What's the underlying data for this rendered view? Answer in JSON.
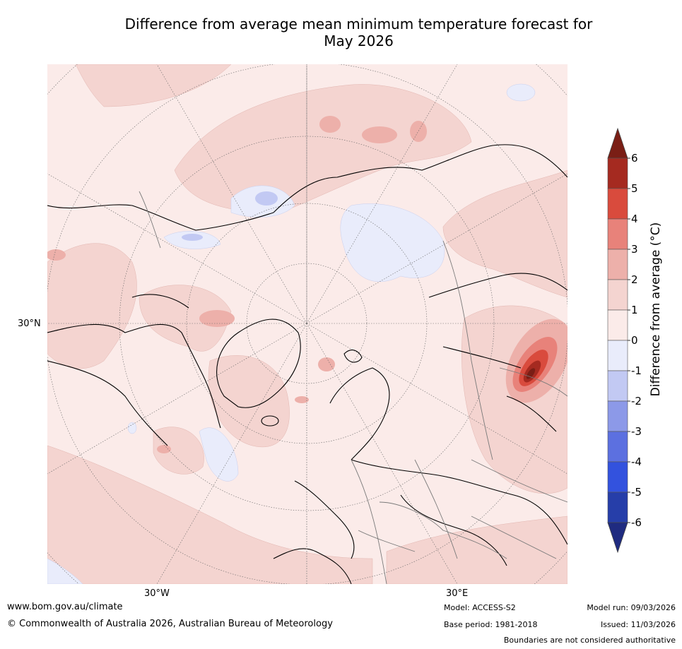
{
  "title_line1": "Difference from average mean minimum temperature forecast for",
  "title_line2": "May 2026",
  "map": {
    "lat_label": "30°N",
    "lon_labels": [
      "30°W",
      "30°E"
    ]
  },
  "colorbar": {
    "label": "Difference from average (°C)",
    "ticks": [
      "6",
      "5",
      "4",
      "3",
      "2",
      "1",
      "0",
      "-1",
      "-2",
      "-3",
      "-4",
      "-5",
      "-6"
    ],
    "colors": [
      "#a52a20",
      "#d94b3d",
      "#e8827a",
      "#edb0aa",
      "#f4d4d0",
      "#fbebe9",
      "#e9ecfb",
      "#c2c9f3",
      "#8c99e8",
      "#5c70e0",
      "#3352de",
      "#263ea9"
    ],
    "extend_top_color": "#7a1e15",
    "extend_bottom_color": "#1f2b80"
  },
  "footer": {
    "website": "www.bom.gov.au/climate",
    "copyright": "© Commonwealth of Australia 2026, Australian Bureau of Meteorology",
    "model": "Model: ACCESS-S2",
    "base_period": "Base period: 1981-2018",
    "model_run": "Model run: 09/03/2026",
    "issued": "Issued: 11/03/2026",
    "disclaimer": "Boundaries are not considered authoritative"
  }
}
